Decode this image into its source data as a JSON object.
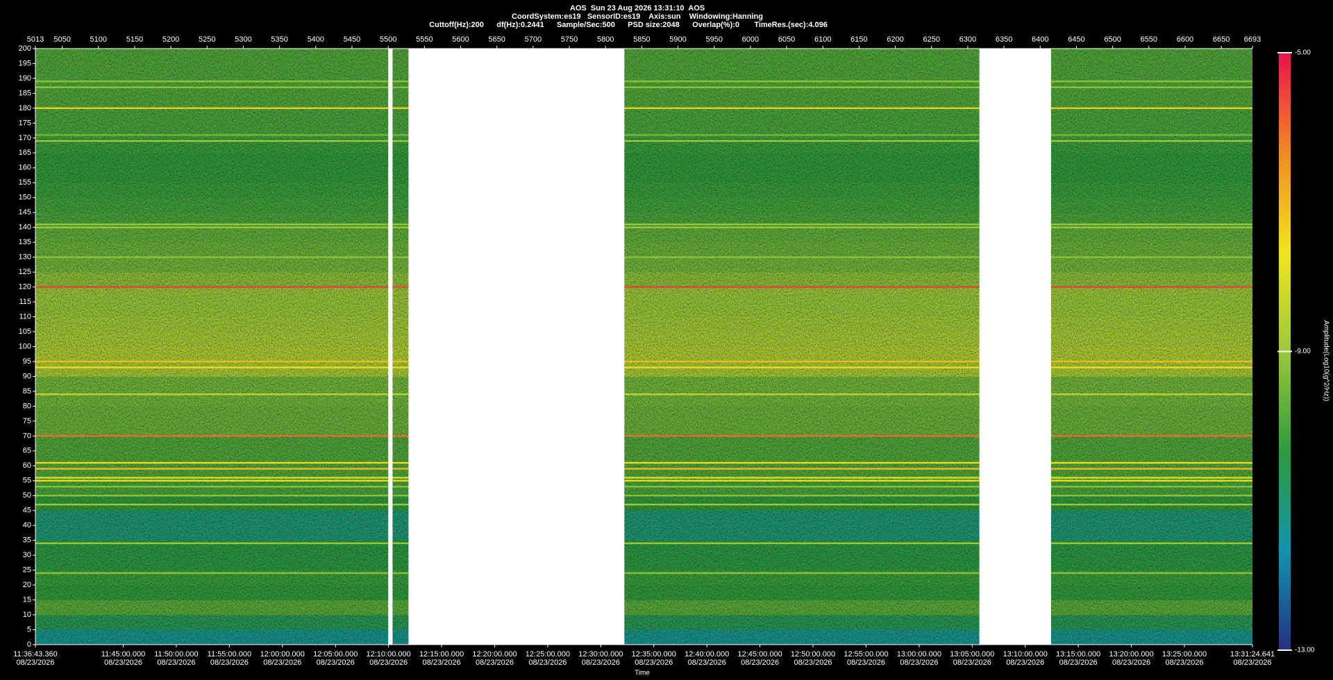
{
  "chart_data": {
    "type": "spectrogram",
    "title": "AOS  Sun 23 Aug 2026 13:31:10  AOS",
    "subtitle": "CoordSystem:es19   SensorID:es19    Axis:sun    Windowing:Hanning",
    "info": "Cuttoff(Hz):200      df(Hz):0.2441      Sample/Sec:500      PSD size:2048      Overlap(%):0       TimeRes.(sec):4.096",
    "x_label": "Time",
    "x_date": "08/23/2026",
    "xlim": [
      "11:36:43.360",
      "13:31:24.641"
    ],
    "xticks": [
      "11:45:00.000",
      "11:50:00.000",
      "11:55:00.000",
      "12:00:00.000",
      "12:05:00.000",
      "12:10:00.000",
      "12:15:00.000",
      "12:20:00.000",
      "12:25:00.000",
      "12:30:00.000",
      "12:35:00.000",
      "12:40:00.000",
      "12:45:00.000",
      "12:50:00.000",
      "12:55:00.000",
      "13:00:00.000",
      "13:05:00.000",
      "13:10:00.000",
      "13:15:00.000",
      "13:20:00.000",
      "13:25:00.000"
    ],
    "x2lim": [
      5013,
      6693
    ],
    "x2ticks": [
      5050,
      5100,
      5150,
      5200,
      5250,
      5300,
      5350,
      5400,
      5450,
      5500,
      5550,
      5600,
      5650,
      5700,
      5750,
      5800,
      5850,
      5900,
      5950,
      6000,
      6050,
      6100,
      6150,
      6200,
      6250,
      6300,
      6350,
      6400,
      6450,
      6500,
      6550,
      6600,
      6650
    ],
    "ylim": [
      0,
      200
    ],
    "yticks": [
      0,
      5,
      10,
      15,
      20,
      25,
      30,
      35,
      40,
      45,
      50,
      55,
      60,
      65,
      70,
      75,
      80,
      85,
      90,
      95,
      100,
      105,
      110,
      115,
      120,
      125,
      130,
      135,
      140,
      145,
      150,
      155,
      160,
      165,
      170,
      175,
      180,
      185,
      190,
      195,
      200
    ],
    "segments": [
      [
        5013,
        5500
      ],
      [
        5506,
        5528
      ],
      [
        5826,
        6316
      ],
      [
        6415,
        6693
      ]
    ],
    "rows": {
      "bins": [
        0,
        5,
        10,
        15,
        20,
        25,
        30,
        35,
        40,
        45,
        50,
        55,
        60,
        65,
        70,
        75,
        80,
        85,
        90,
        95,
        100,
        105,
        110,
        115,
        120,
        125,
        130,
        135,
        140,
        145,
        150,
        155,
        160,
        165,
        170,
        175,
        180,
        185,
        190,
        195,
        200
      ],
      "values": [
        -11.3,
        -10.6,
        -9.8,
        -10.3,
        -10.2,
        -10.4,
        -10.4,
        -11.0,
        -11.0,
        -10.3,
        -10.0,
        -9.9,
        -9.9,
        -9.9,
        -9.6,
        -9.6,
        -9.5,
        -9.5,
        -8.8,
        -8.7,
        -8.8,
        -8.9,
        -9.0,
        -9.0,
        -9.2,
        -9.5,
        -9.6,
        -9.7,
        -10.0,
        -10.1,
        -10.2,
        -10.3,
        -10.3,
        -10.2,
        -10.0,
        -10.0,
        -9.9,
        -9.9,
        -9.9,
        -9.9
      ]
    },
    "lines": {
      "freq": [
        24,
        34,
        47,
        50,
        53,
        55,
        56,
        59,
        61,
        70,
        84,
        93,
        95,
        120,
        130,
        140,
        141,
        169,
        171,
        180,
        187,
        189
      ],
      "amplitude": [
        -9.2,
        -9.0,
        -9.0,
        -9.2,
        -9.2,
        -7.5,
        -8.0,
        -7.0,
        -7.5,
        -6.0,
        -8.5,
        -7.5,
        -7.0,
        -5.5,
        -9.2,
        -9.0,
        -9.0,
        -9.0,
        -9.5,
        -7.3,
        -9.2,
        -9.2
      ]
    },
    "colorbar_label": "Amplitude(Log10(g^2/Hz))",
    "clim": [
      -13,
      -5
    ],
    "cticks": [
      {
        "value": -13,
        "label": "-13.00"
      },
      {
        "value": -9,
        "label": "-9.00"
      },
      {
        "value": -5,
        "label": "-5.00"
      }
    ],
    "colormap": [
      "#26307f",
      "#1095ad",
      "#2e9a3c",
      "#9cc83a",
      "#f1e51c",
      "#f08a24",
      "#e8124e"
    ]
  }
}
